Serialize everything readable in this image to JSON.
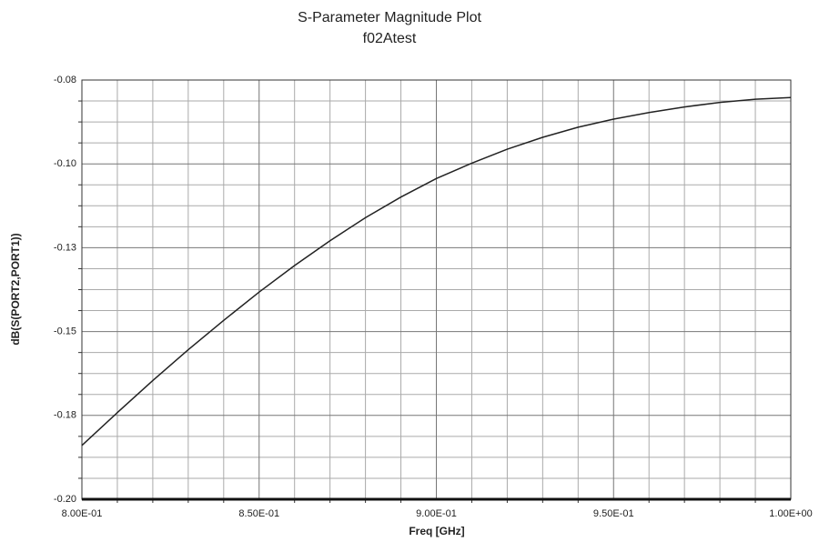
{
  "chart_data": {
    "type": "line",
    "title": "S-Parameter Magnitude Plot",
    "subtitle": "f02Atest",
    "x_label": "Freq [GHz]",
    "y_label": "dB(S(PORT2,PORT1))",
    "x": [
      0.8,
      0.81,
      0.82,
      0.83,
      0.84,
      0.85,
      0.86,
      0.87,
      0.88,
      0.89,
      0.9,
      0.91,
      0.92,
      0.93,
      0.94,
      0.95,
      0.96,
      0.97,
      0.98,
      0.99,
      1.0
    ],
    "series": [
      {
        "color": "#222222",
        "values": [
          -0.1846,
          -0.1752,
          -0.166,
          -0.1572,
          -0.1488,
          -0.1407,
          -0.1331,
          -0.126,
          -0.1194,
          -0.1135,
          -0.1082,
          -0.1038,
          -0.0998,
          -0.0964,
          -0.0935,
          -0.0912,
          -0.0893,
          -0.0877,
          -0.0864,
          -0.0855,
          -0.085
        ]
      }
    ],
    "xlim": [
      0.8,
      1.0
    ],
    "ylim": [
      -0.2,
      -0.08
    ],
    "xticks": [
      {
        "value": 0.8,
        "label": "8.00E-01"
      },
      {
        "value": 0.85,
        "label": "8.50E-01"
      },
      {
        "value": 0.9,
        "label": "9.00E-01"
      },
      {
        "value": 0.95,
        "label": "9.50E-01"
      },
      {
        "value": 1.0,
        "label": "1.00E+00"
      }
    ],
    "yticks": [
      -0.08,
      {
        "value": -0.104,
        "label": "-0.10"
      },
      {
        "value": -0.128,
        "label": "-0.13"
      },
      {
        "value": -0.152,
        "label": "-0.15"
      },
      {
        "value": -0.176,
        "label": "-0.18"
      },
      {
        "value": -0.2,
        "label": "-0.20"
      }
    ],
    "xminorticks": [
      0.81,
      0.82,
      0.83,
      0.84,
      0.86,
      0.87,
      0.88,
      0.89,
      0.91,
      0.92,
      0.93,
      0.94,
      0.96,
      0.97,
      0.98,
      0.99
    ],
    "yminorticks": [
      -0.086,
      -0.092,
      -0.098,
      -0.11,
      -0.116,
      -0.122,
      -0.134,
      -0.14,
      -0.146,
      -0.158,
      -0.164,
      -0.17,
      -0.182,
      -0.188,
      -0.194
    ],
    "grid": true
  }
}
